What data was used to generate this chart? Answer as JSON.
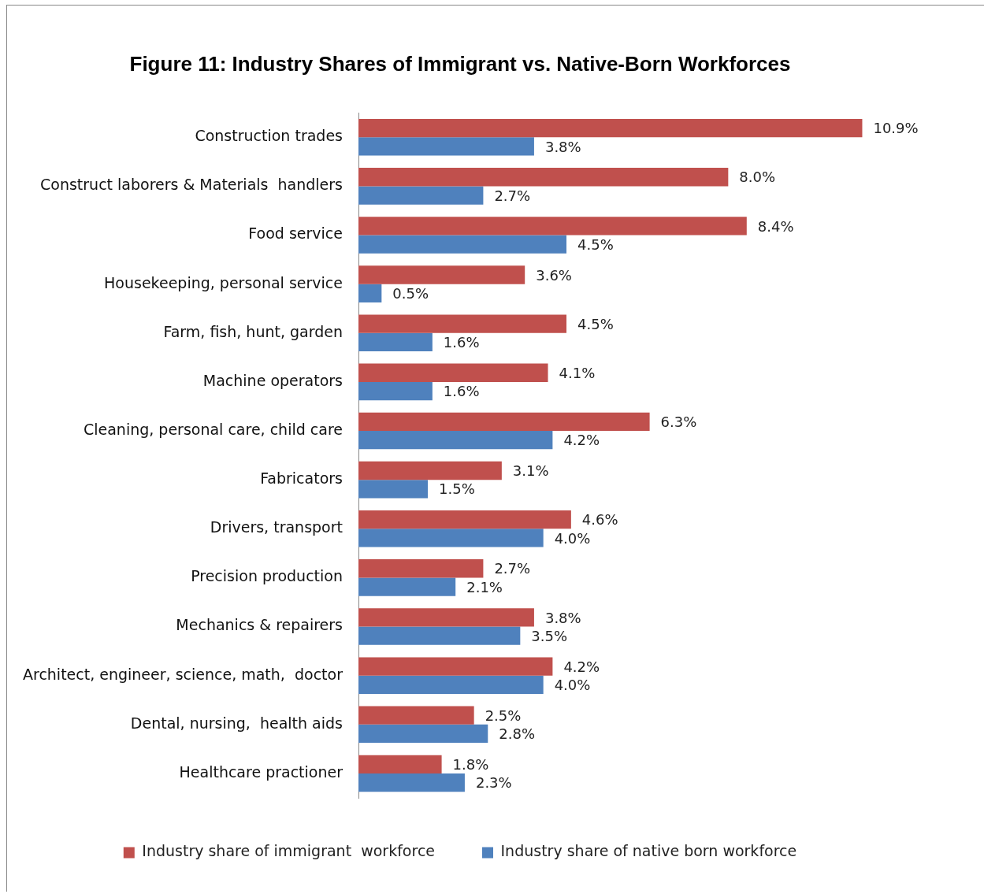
{
  "chart_data": {
    "type": "bar",
    "orientation": "horizontal",
    "title": "Figure 11: Industry Shares of Immigrant vs. Native-Born Workforces",
    "categories": [
      "Construction trades",
      "Construct laborers & Materials  handlers",
      "Food service",
      "Housekeeping, personal service",
      "Farm, fish, hunt, garden",
      "Machine operators",
      "Cleaning, personal care, child care",
      "Fabricators",
      "Drivers, transport",
      "Precision production",
      "Mechanics & repairers",
      "Architect, engineer, science, math,  doctor",
      "Dental, nursing,  health aids",
      "Healthcare practioner"
    ],
    "series": [
      {
        "name": "Industry share of immigrant  workforce",
        "color": "#c0504d",
        "values": [
          10.9,
          8.0,
          8.4,
          3.6,
          4.5,
          4.1,
          6.3,
          3.1,
          4.6,
          2.7,
          3.8,
          4.2,
          2.5,
          1.8
        ],
        "value_labels": [
          "10.9%",
          "8.0%",
          "8.4%",
          "3.6%",
          "4.5%",
          "4.1%",
          "6.3%",
          "3.1%",
          "4.6%",
          "2.7%",
          "3.8%",
          "4.2%",
          "2.5%",
          "1.8%"
        ]
      },
      {
        "name": "Industry share of native born workforce",
        "color": "#4f81bd",
        "values": [
          3.8,
          2.7,
          4.5,
          0.5,
          1.6,
          1.6,
          4.2,
          1.5,
          4.0,
          2.1,
          3.5,
          4.0,
          2.8,
          2.3
        ],
        "value_labels": [
          "3.8%",
          "2.7%",
          "4.5%",
          "0.5%",
          "1.6%",
          "1.6%",
          "4.2%",
          "1.5%",
          "4.0%",
          "2.1%",
          "3.5%",
          "4.0%",
          "2.8%",
          "2.3%"
        ]
      }
    ],
    "legend": "bottom",
    "grid": false
  }
}
